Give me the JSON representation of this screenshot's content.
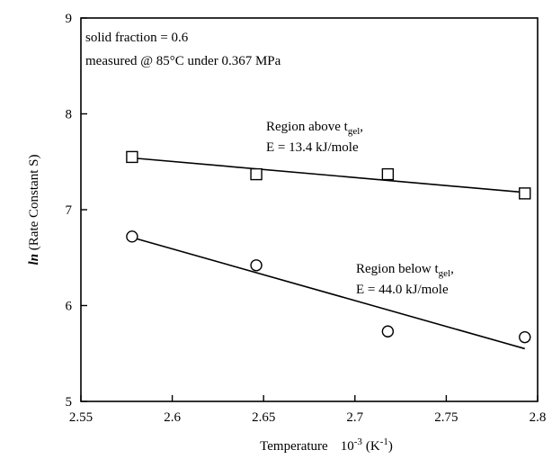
{
  "chart_data": {
    "type": "scatter",
    "xlabel_main": "Temperature",
    "xlabel_scale": "10",
    "xlabel_scale_exp": "-3",
    "xlabel_unit_open": "(K",
    "xlabel_unit_exp": "-1",
    "xlabel_unit_close": ")",
    "ylabel_italic": "ln",
    "ylabel_rest": " (Rate Constant  S)",
    "xlim": [
      2.55,
      2.8
    ],
    "ylim": [
      5,
      9
    ],
    "x_ticks": [
      "2.55",
      "2.6",
      "2.65",
      "2.7",
      "2.75",
      "2.8"
    ],
    "y_ticks": [
      "5",
      "6",
      "7",
      "8",
      "9"
    ],
    "grid": false,
    "annotations": {
      "solid_fraction": "solid fraction = 0.6",
      "measured": "measured @ 85°C under 0.367 MPa"
    },
    "series": [
      {
        "marker": "square",
        "label_line1_prefix": "Region above t",
        "label_line1_sub": "gel",
        "label_line1_suffix": ",",
        "label_line2": "E = 13.4 kJ/mole",
        "x": [
          2.578,
          2.646,
          2.718,
          2.793
        ],
        "y": [
          7.55,
          7.37,
          7.37,
          7.17
        ],
        "fit": [
          [
            2.578,
            7.54
          ],
          [
            2.793,
            7.18
          ]
        ]
      },
      {
        "marker": "circle",
        "label_line1_prefix": "Region below t",
        "label_line1_sub": "gel",
        "label_line1_suffix": ",",
        "label_line2": "E = 44.0 kJ/mole",
        "x": [
          2.578,
          2.646,
          2.718,
          2.793
        ],
        "y": [
          6.72,
          6.42,
          5.73,
          5.67
        ],
        "fit": [
          [
            2.578,
            6.71
          ],
          [
            2.793,
            5.55
          ]
        ]
      }
    ]
  }
}
